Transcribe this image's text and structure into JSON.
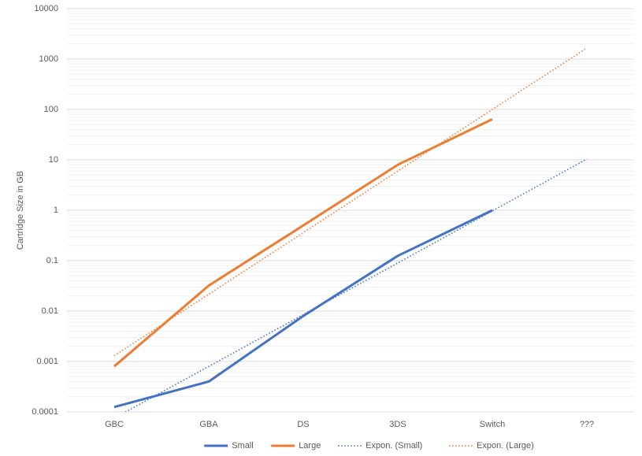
{
  "chart_data": {
    "type": "line",
    "y_label": "Cartridge Size in GB",
    "categories": [
      "GBC",
      "GBA",
      "DS",
      "3DS",
      "Switch",
      "???"
    ],
    "log_scale": true,
    "grid": true,
    "minor_grid": true,
    "legend": "bottom",
    "ylim": [
      0.0001,
      10000
    ],
    "yticks": [
      0.0001,
      0.001,
      0.01,
      0.1,
      1,
      10,
      100,
      1000,
      10000
    ],
    "series": [
      {
        "name": "Small",
        "color": "#4472c4",
        "style": "solid",
        "values": [
          0.000125,
          0.0004,
          0.008,
          0.125,
          1,
          null
        ]
      },
      {
        "name": "Large",
        "color": "#ed7d31",
        "style": "solid",
        "values": [
          0.0008,
          0.032,
          0.5,
          8,
          64,
          null
        ]
      },
      {
        "name": "Expon. (Small)",
        "color": "#4472c4",
        "style": "dotted",
        "values": [
          7.5e-05,
          0.0008,
          0.0085,
          0.09,
          0.97,
          10.4
        ]
      },
      {
        "name": "Expon. (Large)",
        "color": "#ed7d31",
        "style": "dotted",
        "values": [
          0.0013,
          0.0216,
          0.36,
          6,
          100,
          1660
        ]
      }
    ]
  }
}
